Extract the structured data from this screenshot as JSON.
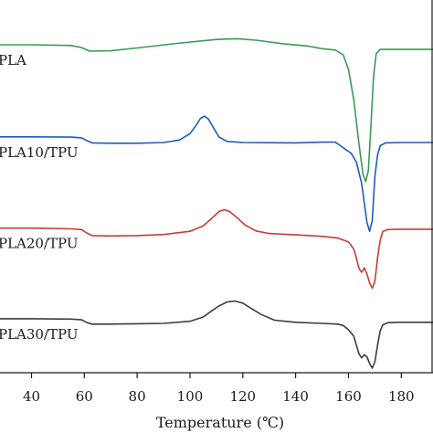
{
  "chart_data": {
    "type": "line",
    "title": "",
    "xlabel": "Temperature (℃)",
    "ylabel": "",
    "xlim": [
      26,
      192
    ],
    "ylim": [
      0,
      100
    ],
    "grid": false,
    "legend": "none",
    "x_ticks": [
      40,
      60,
      80,
      100,
      120,
      140,
      160,
      180
    ],
    "series": [
      {
        "name": "PLA",
        "color": "#3a9a55",
        "points": [
          [
            26,
            91
          ],
          [
            40,
            91
          ],
          [
            55,
            90.8
          ],
          [
            59,
            90.2
          ],
          [
            62,
            89.2
          ],
          [
            70,
            89.3
          ],
          [
            80,
            90.1
          ],
          [
            95,
            91.4
          ],
          [
            110,
            92.5
          ],
          [
            118,
            92.7
          ],
          [
            125,
            92.3
          ],
          [
            135,
            91.3
          ],
          [
            145,
            90.6
          ],
          [
            150,
            89.9
          ],
          [
            155,
            89.5
          ],
          [
            158,
            88.2
          ],
          [
            160,
            84
          ],
          [
            162,
            75.5
          ],
          [
            164,
            63
          ],
          [
            165.5,
            54.5
          ],
          [
            166.5,
            52.5
          ],
          [
            167.5,
            55.5
          ],
          [
            168.5,
            68
          ],
          [
            169.5,
            82
          ],
          [
            170.5,
            88.5
          ],
          [
            172,
            89.7
          ],
          [
            180,
            89.7
          ],
          [
            192,
            89.7
          ]
        ]
      },
      {
        "name": "PLA10/TPU",
        "color": "#1f5bbf",
        "points": [
          [
            26,
            65.1
          ],
          [
            40,
            65.1
          ],
          [
            55,
            65
          ],
          [
            59,
            64.8
          ],
          [
            61,
            64
          ],
          [
            63,
            63.4
          ],
          [
            70,
            63.3
          ],
          [
            80,
            63.3
          ],
          [
            90,
            63.5
          ],
          [
            96,
            64.2
          ],
          [
            100,
            66
          ],
          [
            102,
            68
          ],
          [
            104,
            70.3
          ],
          [
            105.5,
            70.9
          ],
          [
            107,
            70.1
          ],
          [
            109,
            67.5
          ],
          [
            111,
            65
          ],
          [
            114,
            63.8
          ],
          [
            120,
            63.5
          ],
          [
            140,
            63.4
          ],
          [
            150,
            63.6
          ],
          [
            155,
            63.6
          ],
          [
            157,
            62.6
          ],
          [
            159,
            61.5
          ],
          [
            161,
            60.5
          ],
          [
            163,
            58
          ],
          [
            165,
            52
          ],
          [
            166,
            46.5
          ],
          [
            167,
            41
          ],
          [
            168,
            38.5
          ],
          [
            169,
            41.5
          ],
          [
            170,
            54
          ],
          [
            171,
            60
          ],
          [
            172,
            62.6
          ],
          [
            174,
            63.4
          ],
          [
            180,
            63.5
          ],
          [
            192,
            63.5
          ]
        ]
      },
      {
        "name": "PLA20/TPU",
        "color": "#cc3a3a",
        "points": [
          [
            26,
            39.4
          ],
          [
            40,
            39.4
          ],
          [
            55,
            39.2
          ],
          [
            59,
            39
          ],
          [
            61,
            38
          ],
          [
            63,
            37.3
          ],
          [
            70,
            37.2
          ],
          [
            80,
            37.3
          ],
          [
            90,
            37.6
          ],
          [
            100,
            38.5
          ],
          [
            105,
            40
          ],
          [
            108,
            42
          ],
          [
            111,
            44.1
          ],
          [
            113,
            44.6
          ],
          [
            115,
            44.1
          ],
          [
            118,
            42.2
          ],
          [
            121,
            40.2
          ],
          [
            125,
            38.6
          ],
          [
            130,
            37.9
          ],
          [
            140,
            37.5
          ],
          [
            150,
            37.1
          ],
          [
            156,
            36.6
          ],
          [
            160,
            35.5
          ],
          [
            162,
            33.5
          ],
          [
            163,
            31
          ],
          [
            164,
            28
          ],
          [
            165,
            27
          ],
          [
            166,
            28.2
          ],
          [
            167,
            26.5
          ],
          [
            168,
            24
          ],
          [
            169,
            22.5
          ],
          [
            170,
            24.5
          ],
          [
            171,
            31
          ],
          [
            172,
            36
          ],
          [
            173,
            38.5
          ],
          [
            175,
            39
          ],
          [
            180,
            39.1
          ],
          [
            192,
            39.1
          ]
        ]
      },
      {
        "name": "PLA30/TPU",
        "color": "#3d3d3d",
        "points": [
          [
            26,
            13.9
          ],
          [
            40,
            13.9
          ],
          [
            55,
            13.8
          ],
          [
            59,
            13.6
          ],
          [
            61,
            12.8
          ],
          [
            63,
            12.4
          ],
          [
            70,
            12.4
          ],
          [
            80,
            12.5
          ],
          [
            90,
            12.6
          ],
          [
            100,
            13.2
          ],
          [
            105,
            14.4
          ],
          [
            108,
            16
          ],
          [
            111,
            17.5
          ],
          [
            114,
            18.6
          ],
          [
            117,
            18.9
          ],
          [
            120,
            18.3
          ],
          [
            123,
            16.9
          ],
          [
            127,
            15.1
          ],
          [
            132,
            13.5
          ],
          [
            140,
            12.9
          ],
          [
            150,
            12.6
          ],
          [
            156,
            12.4
          ],
          [
            158,
            12
          ],
          [
            160,
            10.8
          ],
          [
            162,
            9
          ],
          [
            163,
            6.5
          ],
          [
            164,
            4
          ],
          [
            165,
            2.9
          ],
          [
            166,
            3.8
          ],
          [
            167,
            3.2
          ],
          [
            168,
            1.3
          ],
          [
            169,
            0
          ],
          [
            170,
            1.8
          ],
          [
            171,
            6.5
          ],
          [
            172,
            10.5
          ],
          [
            173,
            12.2
          ],
          [
            175,
            12.8
          ],
          [
            180,
            12.9
          ],
          [
            192,
            12.9
          ]
        ]
      }
    ]
  }
}
